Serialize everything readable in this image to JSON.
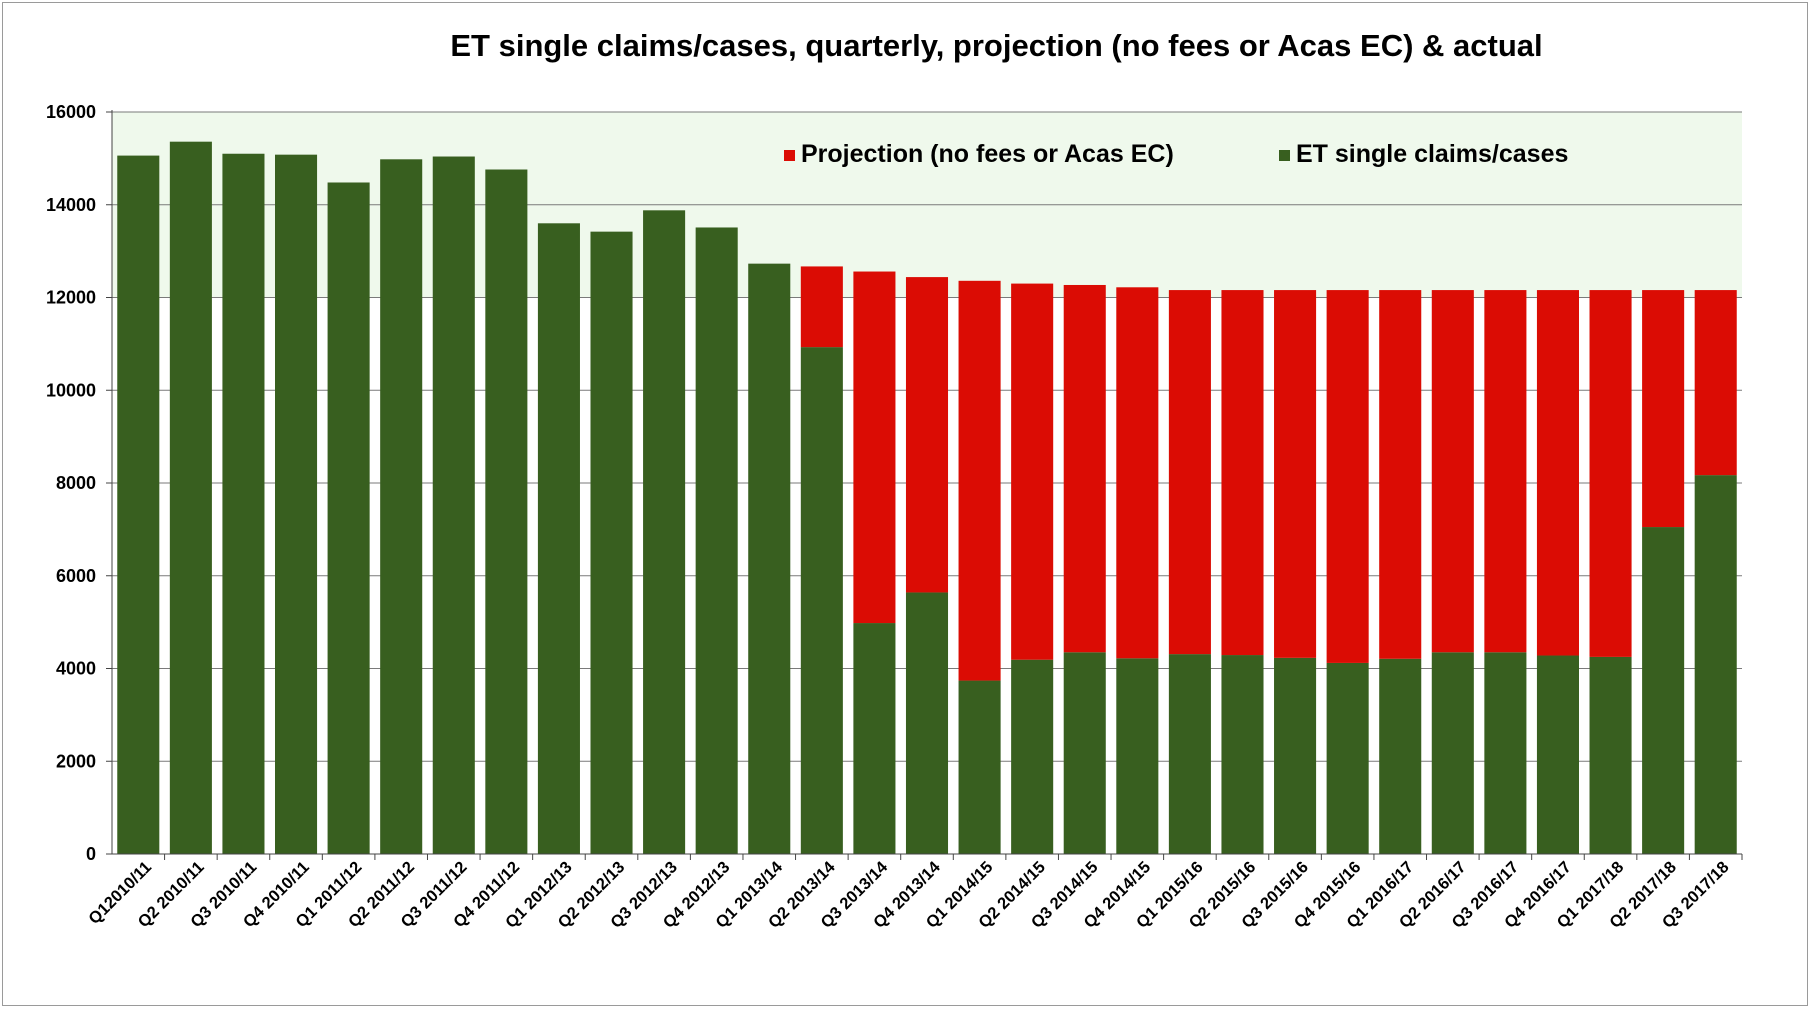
{
  "chart_data": {
    "type": "bar",
    "stacked": true,
    "title": "ET single claims/cases, quarterly, projection (no fees or Acas EC) & actual",
    "xlabel": "",
    "ylabel": "",
    "ylim": [
      0,
      16000
    ],
    "yticks": [
      0,
      2000,
      4000,
      6000,
      8000,
      10000,
      12000,
      14000,
      16000
    ],
    "grid": true,
    "legend_position": "top-right",
    "colors": {
      "ET single claims/cases": "#385f1f",
      "Projection (no fees or Acas EC)": "#db0c04",
      "plot_band": "#eff9ec"
    },
    "categories": [
      "Q12010/11",
      "Q2 2010/11",
      "Q3 2010/11",
      "Q4 2010/11",
      "Q1 2011/12",
      "Q2 2011/12",
      "Q3 2011/12",
      "Q4 2011/12",
      "Q1 2012/13",
      "Q2 2012/13",
      "Q3 2012/13",
      "Q4 2012/13",
      "Q1 2013/14",
      "Q2 2013/14",
      "Q3 2013/14",
      "Q4 2013/14",
      "Q1 2014/15",
      "Q2 2014/15",
      "Q3 2014/15",
      "Q4 2014/15",
      "Q1 2015/16",
      "Q2 2015/16",
      "Q3 2015/16",
      "Q4 2015/16",
      "Q1 2016/17",
      "Q2 2016/17",
      "Q3 2016/17",
      "Q4 2016/17",
      "Q1 2017/18",
      "Q2 2017/18",
      "Q3 2017/18"
    ],
    "legend_order": [
      "Projection (no fees or Acas EC)",
      "ET single claims/cases"
    ],
    "series": [
      {
        "name": "ET single claims/cases",
        "values": [
          15060,
          15360,
          15100,
          15080,
          14480,
          14980,
          15040,
          14760,
          13600,
          13420,
          13880,
          13510,
          12730,
          10930,
          4980,
          5640,
          3740,
          4190,
          4350,
          4220,
          4310,
          4290,
          4230,
          4120,
          4210,
          4350,
          4350,
          4280,
          4250,
          7050,
          8170
        ]
      },
      {
        "name": "Projection (no fees or Acas EC)",
        "values": [
          0,
          0,
          0,
          0,
          0,
          0,
          0,
          0,
          0,
          0,
          0,
          0,
          0,
          1740,
          7580,
          6800,
          8620,
          8110,
          7920,
          8000,
          7850,
          7870,
          7930,
          8040,
          7950,
          7810,
          7810,
          7880,
          7910,
          5110,
          3990
        ]
      }
    ]
  }
}
